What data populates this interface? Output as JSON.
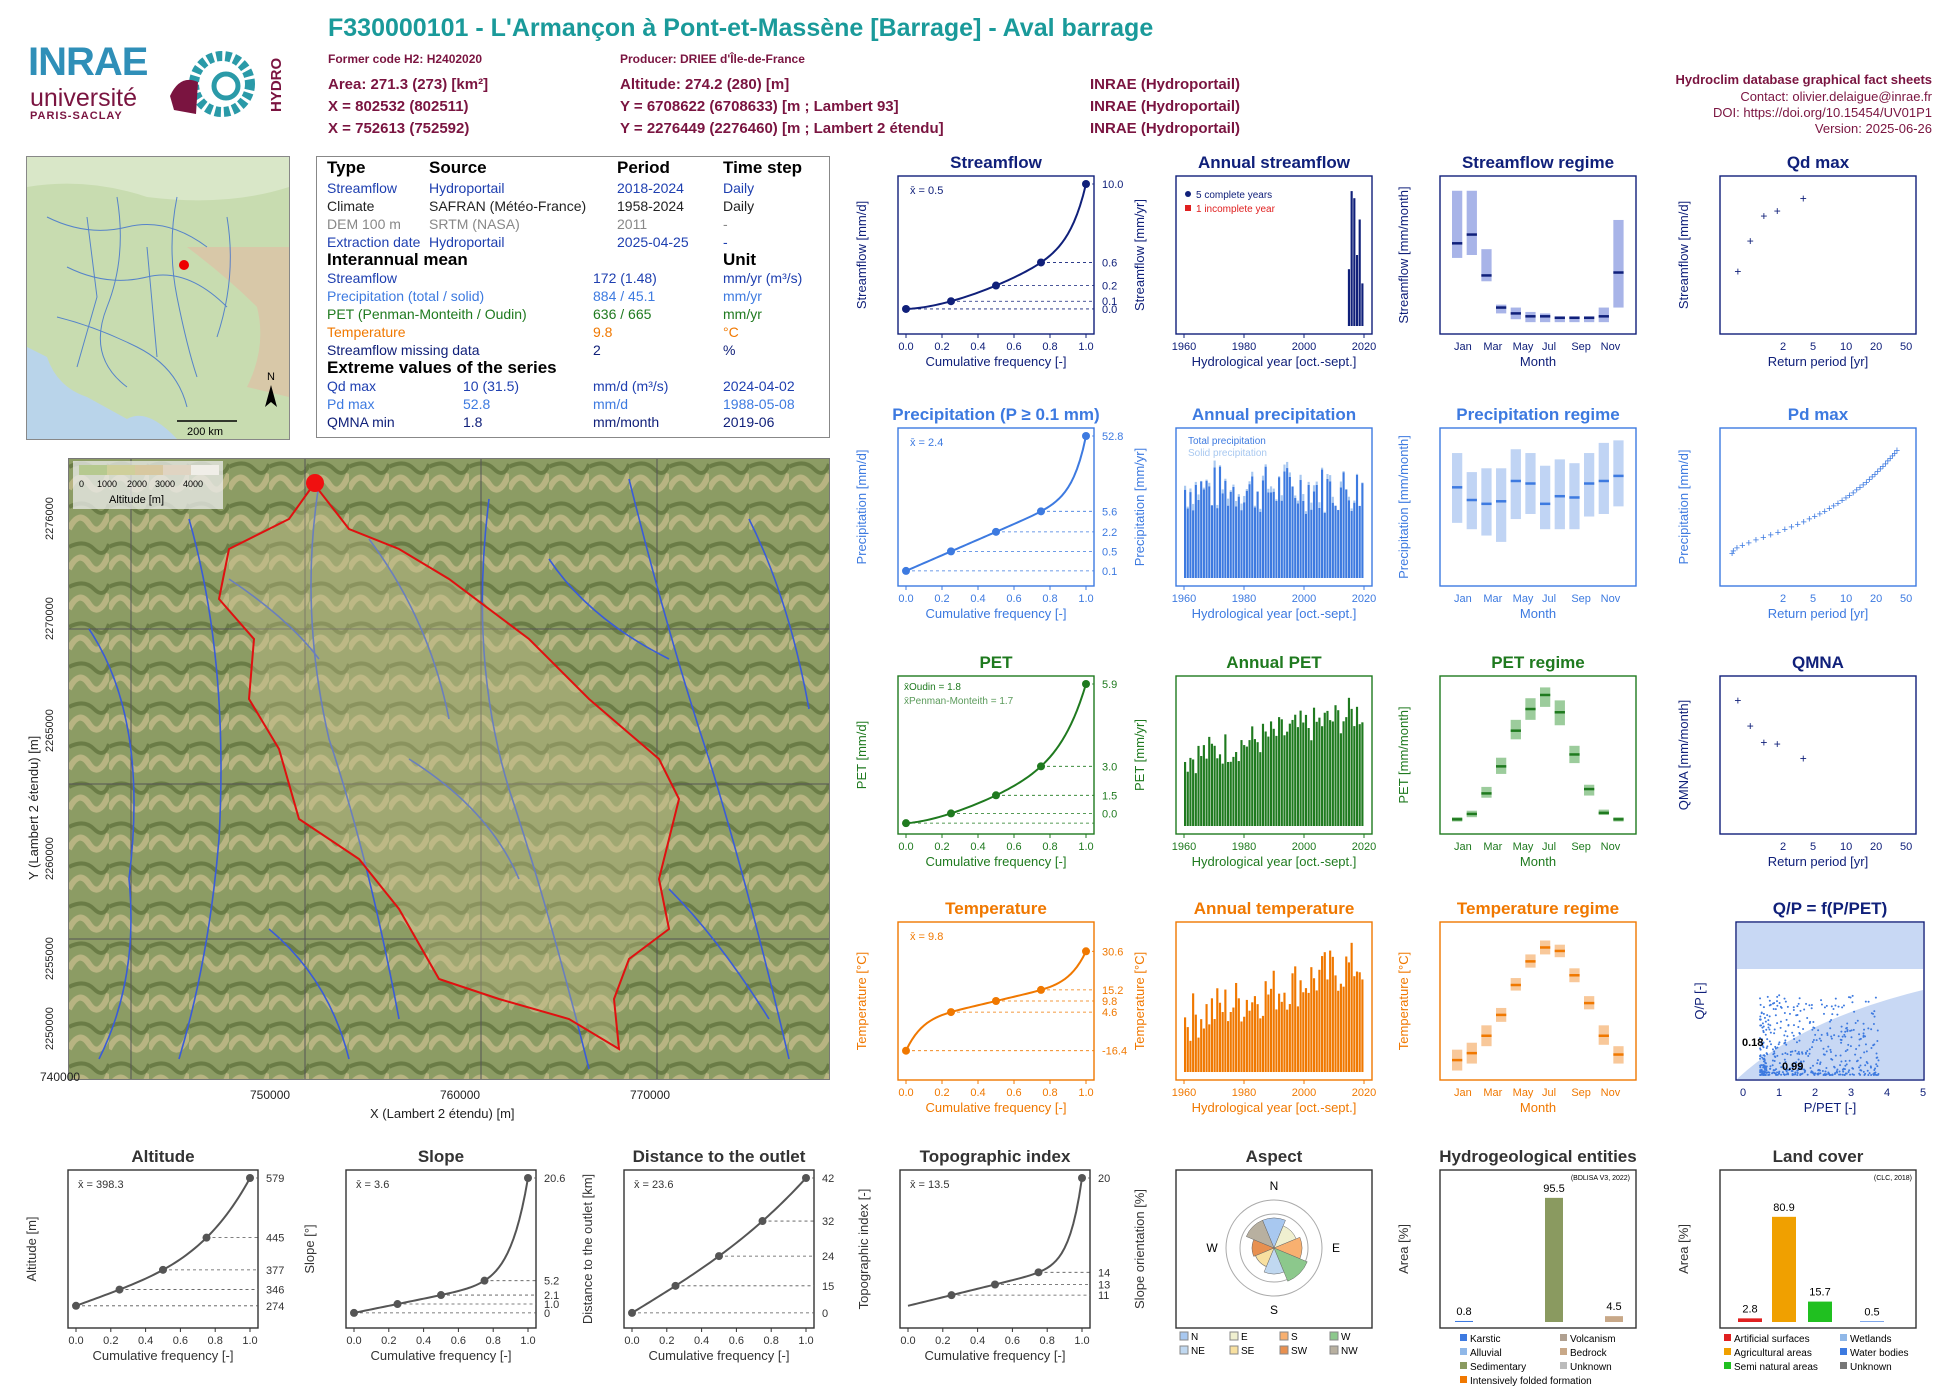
{
  "header": {
    "title": "F330000101 - L'Armançon à Pont-et-Massène [Barrage] - Aval barrage",
    "former_code": "Former code H2: H2402020",
    "producer": "Producer: DRIEE d'Île-de-France",
    "area": "Area: 271.3 (273) [km²]",
    "altitude": "Altitude: 274.2 (280) [m]",
    "x93": "X = 802532 (802511)",
    "y93": "Y = 6708622 (6708633) [m ; Lambert 93]",
    "x2": "X = 752613 (752592)",
    "y2": "Y = 2276449 (2276460) [m ; Lambert 2 étendu]",
    "src1": "INRAE (Hydroportail)",
    "src2": "INRAE (Hydroportail)",
    "src3": "INRAE (Hydroportail)",
    "db": "Hydroclim database graphical fact sheets",
    "contact": "Contact: olivier.delaigue@inrae.fr",
    "doi": "DOI: https://doi.org/10.15454/UV01P1",
    "version": "Version: 2025-06-26"
  },
  "logos": {
    "inrae": "INRAE",
    "univ": "université",
    "ps": "PARIS-SACLAY",
    "hydro": "HYDRO"
  },
  "info_table": {
    "h_type": "Type",
    "h_source": "Source",
    "h_period": "Period",
    "h_step": "Time step",
    "rows": [
      {
        "type": "Streamflow",
        "source": "Hydroportail",
        "period": "2018-2024",
        "step": "Daily"
      },
      {
        "type": "Climate",
        "source": "SAFRAN (Météo-France)",
        "period": "1958-2024",
        "step": "Daily"
      },
      {
        "type": "DEM 100 m",
        "source": "SRTM (NASA)",
        "period": "2011",
        "step": "-"
      },
      {
        "type": "Extraction date",
        "source": "Hydroportail",
        "period": "2025-04-25",
        "step": "-"
      }
    ],
    "h_mean": "Interannual mean",
    "h_unit": "Unit",
    "means": [
      {
        "name": "Streamflow",
        "value": "172 (1.48)",
        "unit": "mm/yr (m³/s)"
      },
      {
        "name": "Precipitation (total / solid)",
        "value": "884 / 45.1",
        "unit": "mm/yr"
      },
      {
        "name": "PET (Penman-Monteith / Oudin)",
        "value": "636 / 665",
        "unit": "mm/yr"
      },
      {
        "name": "Temperature",
        "value": "9.8",
        "unit": "°C"
      },
      {
        "name": "Streamflow missing data",
        "value": "2",
        "unit": "%"
      }
    ],
    "h_extreme": "Extreme values of the series",
    "extremes": [
      {
        "name": "Qd max",
        "value": "10 (31.5)",
        "unit": "mm/d (m³/s)",
        "date": "2024-04-02"
      },
      {
        "name": "Pd max",
        "value": "52.8",
        "unit": "mm/d",
        "date": "1988-05-08"
      },
      {
        "name": "QMNA min",
        "value": "1.8",
        "unit": "mm/month",
        "date": "2019-06"
      }
    ]
  },
  "map": {
    "scale": "200 km",
    "north": "N",
    "alt_label": "Altitude [m]",
    "alt_ticks": [
      "0",
      "1000",
      "2000",
      "3000",
      "4000"
    ],
    "xlabel": "X (Lambert 2 étendu) [m]",
    "ylabel": "Y (Lambert 2 étendu) [m]",
    "xticks": [
      "740000",
      "750000",
      "760000",
      "770000"
    ],
    "yticks": [
      "2276000",
      "2270000",
      "2265000",
      "2260000",
      "2255000",
      "2250000"
    ]
  },
  "chart_titles": {
    "streamflow": "Streamflow",
    "annual_streamflow": "Annual streamflow",
    "streamflow_regime": "Streamflow regime",
    "qd_max": "Qd max",
    "precip": "Precipitation (P ≥ 0.1 mm)",
    "annual_precip": "Annual precipitation",
    "precip_regime": "Precipitation regime",
    "pd_max": "Pd max",
    "pet": "PET",
    "annual_pet": "Annual PET",
    "pet_regime": "PET regime",
    "qmna": "QMNA",
    "temp": "Temperature",
    "annual_temp": "Annual temperature",
    "temp_regime": "Temperature regime",
    "qp": "Q/P = f(P/PET)",
    "altitude": "Altitude",
    "slope": "Slope",
    "distance": "Distance to the outlet",
    "topo": "Topographic index",
    "aspect": "Aspect",
    "hydrogeo": "Hydrogeological entities",
    "landcover": "Land cover"
  },
  "axis": {
    "cumfreq": "Cumulative frequency [-]",
    "hydroyear": "Hydrological year [oct.-sept.]",
    "month": "Month",
    "return": "Return period [yr]"
  },
  "legends": {
    "complete": "5 complete years",
    "incomplete": "1 incomplete year",
    "total_precip": "Total precipitation",
    "solid_precip": "Solid precipitation",
    "pet_oudin": "x̄Oudin = 1.8",
    "pet_pm": "x̄Penman-Monteith = 1.7"
  },
  "chart_data": [
    {
      "id": "streamflow_cdf",
      "type": "line",
      "ylabel": "Streamflow [mm/d]",
      "mean": "x̄ = 0.5",
      "right_ticks": [
        "10.0",
        "0.6",
        "0.2",
        "0.1",
        "0.0"
      ]
    },
    {
      "id": "pet_cdf",
      "type": "line",
      "ylabel": "PET [mm/d]",
      "right_ticks": [
        "5.9",
        "3.0",
        "1.5",
        "0.0"
      ]
    },
    {
      "id": "temp_cdf",
      "type": "line",
      "ylabel": "Temperature [°C]",
      "mean": "x̄ = 9.8",
      "right_ticks": [
        "30.6",
        "15.2",
        "9.8",
        "4.6",
        "-16.4"
      ]
    },
    {
      "id": "precip_cdf",
      "type": "line",
      "ylabel": "Precipitation [mm/d]",
      "mean": "x̄ = 2.4",
      "right_ticks": [
        "52.8",
        "5.6",
        "2.2",
        "0.5",
        "0.1"
      ]
    },
    {
      "id": "qd_max",
      "type": "scatter",
      "ylabel": "Streamflow [mm/d]",
      "x": [
        1.2,
        1.6,
        2.2,
        3.0,
        5.5
      ],
      "y": [
        2.1,
        3.3,
        4.3,
        4.5,
        5.0
      ]
    },
    {
      "id": "qmna",
      "type": "scatter",
      "ylabel": "QMNA [mm/month]",
      "x": [
        1.2,
        1.6,
        2.2,
        3.0,
        5.5
      ],
      "y": [
        3.4,
        2.7,
        2.25,
        2.2,
        1.8
      ]
    },
    {
      "id": "streamflow_regime",
      "type": "bar",
      "ylabel": "Streamflow [mm/month]",
      "categories": [
        "Jan",
        "Feb",
        "Mar",
        "Apr",
        "May",
        "Jun",
        "Jul",
        "Aug",
        "Sep",
        "Oct",
        "Nov",
        "Dec"
      ],
      "median": [
        29,
        32,
        18,
        7,
        5,
        4,
        4,
        3.5,
        3.5,
        3.5,
        4,
        19
      ],
      "low": [
        24,
        25,
        16,
        5,
        3,
        2,
        2,
        2,
        2,
        2,
        2,
        7
      ],
      "high": [
        47,
        47,
        27,
        8,
        7,
        5.5,
        5,
        4,
        4,
        4,
        7,
        37
      ]
    },
    {
      "id": "precip_regime",
      "type": "bar",
      "ylabel": "Precipitation [mm/month]",
      "categories": [
        "Jan",
        "Feb",
        "Mar",
        "Apr",
        "May",
        "Jun",
        "Jul",
        "Aug",
        "Sep",
        "Oct",
        "Nov",
        "Dec"
      ],
      "median": [
        73,
        63,
        60,
        62,
        78,
        76,
        60,
        66,
        65,
        76,
        78,
        82
      ],
      "low": [
        45,
        40,
        35,
        30,
        48,
        52,
        40,
        40,
        40,
        50,
        52,
        58
      ],
      "high": [
        100,
        85,
        88,
        88,
        103,
        100,
        90,
        95,
        92,
        100,
        108,
        110
      ]
    },
    {
      "id": "pet_regime",
      "type": "bar",
      "ylabel": "PET [mm/month]",
      "categories": [
        "Jan",
        "Feb",
        "Mar",
        "Apr",
        "May",
        "Jun",
        "Jul",
        "Aug",
        "Sep",
        "Oct",
        "Nov",
        "Dec"
      ],
      "median": [
        8,
        13,
        32,
        57,
        90,
        110,
        123,
        107,
        68,
        36,
        14,
        8
      ],
      "low": [
        6,
        10,
        28,
        50,
        82,
        100,
        112,
        95,
        60,
        30,
        12,
        6
      ],
      "high": [
        10,
        16,
        38,
        65,
        100,
        120,
        130,
        118,
        76,
        40,
        17,
        10
      ]
    },
    {
      "id": "temp_regime",
      "type": "bar",
      "ylabel": "Temperature [°C]",
      "categories": [
        "Jan",
        "Feb",
        "Mar",
        "Apr",
        "May",
        "Jun",
        "Jul",
        "Aug",
        "Sep",
        "Oct",
        "Nov",
        "Dec"
      ],
      "median": [
        2,
        3,
        5.5,
        8.5,
        12.8,
        16.2,
        18.2,
        17.7,
        14.2,
        10.2,
        5.5,
        2.8
      ],
      "low": [
        0.5,
        1.5,
        4,
        7.5,
        12,
        15.3,
        17.2,
        16.8,
        13.2,
        9.3,
        4.2,
        1.5
      ],
      "high": [
        3.5,
        4.5,
        7,
        9.5,
        13.8,
        17.2,
        19.2,
        18.6,
        15.2,
        11.2,
        7,
        4
      ]
    },
    {
      "id": "annual_pet",
      "type": "bar",
      "ylabel": "PET [mm/yr]",
      "x_range": [
        1958,
        2024
      ],
      "ylim": [
        460,
        870
      ]
    },
    {
      "id": "annual_temp",
      "type": "bar",
      "ylabel": "Temperature [°C]",
      "x_range": [
        1958,
        2024
      ],
      "ylim": [
        7.3,
        12.3
      ]
    },
    {
      "id": "annual_precip",
      "type": "bar",
      "ylabel": "Precipitation [mm/yr]",
      "x_range": [
        1958,
        2024
      ],
      "ylim": [
        0,
        1250
      ]
    },
    {
      "id": "annual_streamflow",
      "type": "bar",
      "ylabel": "Streamflow [mm/yr]",
      "x_range": [
        1958,
        2024
      ],
      "ylim": [
        0,
        290
      ]
    },
    {
      "id": "altitude",
      "type": "line",
      "ylabel": "Altitude [m]",
      "mean": "x̄ = 398.3",
      "right_ticks": [
        "579",
        "445",
        "377",
        "346",
        "274"
      ]
    },
    {
      "id": "slope",
      "type": "line",
      "ylabel": "Slope [°]",
      "mean": "x̄ = 3.6",
      "right_ticks": [
        "20.6",
        "5.2",
        "2.1",
        "1.0",
        "0"
      ]
    },
    {
      "id": "distance",
      "type": "line",
      "ylabel": "Distance to the outlet [km]",
      "mean": "x̄ = 23.6",
      "right_ticks": [
        "42",
        "32",
        "24",
        "15",
        "0"
      ]
    },
    {
      "id": "topo",
      "type": "line",
      "ylabel": "Topographic index [-]",
      "mean": "x̄ = 13.5",
      "right_ticks": [
        "20",
        "14",
        "13",
        "11"
      ]
    },
    {
      "id": "aspect",
      "type": "pie",
      "ylabel": "Slope orientation [%]",
      "legend": [
        "N",
        "E",
        "S",
        "W",
        "NE",
        "SE",
        "SW",
        "NW"
      ]
    },
    {
      "id": "hydrogeo",
      "type": "bar",
      "ylabel": "Area [%]",
      "note": "(BDLISA V3, 2022)",
      "values": [
        0.8,
        95.5,
        4.5
      ],
      "legend": [
        "Karstic",
        "Volcanism",
        "Alluvial",
        "Bedrock",
        "Sedimentary",
        "Unknown",
        "Intensively folded formation"
      ]
    },
    {
      "id": "landcover",
      "type": "bar",
      "ylabel": "Area [%]",
      "note": "(CLC, 2018)",
      "values": [
        2.8,
        80.9,
        15.7,
        0.5
      ],
      "legend": [
        "Artificial surfaces",
        "Wetlands",
        "Agricultural areas",
        "Water bodies",
        "Semi natural areas",
        "Unknown"
      ]
    },
    {
      "id": "qp",
      "type": "scatter",
      "xlabel": "P/PET [-]",
      "ylabel": "Q/P [-]",
      "labels": [
        "0.18",
        "0.99"
      ]
    }
  ]
}
